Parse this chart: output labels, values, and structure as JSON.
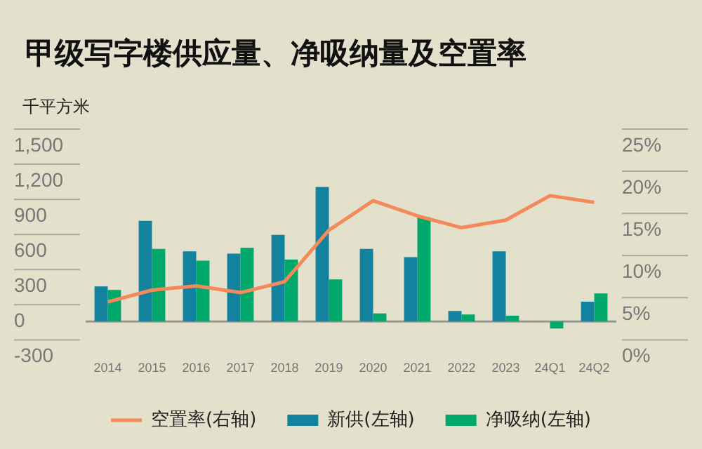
{
  "chart_data": {
    "type": "bar",
    "title": "甲级写字楼供应量、净吸纳量及空置率",
    "ylabel": "千平方米",
    "categories": [
      "2014",
      "2015",
      "2016",
      "2017",
      "2018",
      "2019",
      "2020",
      "2021",
      "2022",
      "2023",
      "24Q1",
      "24Q2"
    ],
    "series": [
      {
        "name": "新供(左轴)",
        "color": "#13829f",
        "values": [
          300,
          860,
          600,
          580,
          740,
          1150,
          620,
          550,
          90,
          600,
          null,
          170
        ]
      },
      {
        "name": "净吸纳(左轴)",
        "color": "#00a86b",
        "values": [
          270,
          620,
          520,
          630,
          530,
          360,
          70,
          890,
          60,
          50,
          -60,
          240
        ]
      },
      {
        "name": "空置率(右轴)",
        "type": "line",
        "axis": "y2",
        "color": "#f5895a",
        "values": [
          6.5,
          7.9,
          8.4,
          7.6,
          8.9,
          15.0,
          18.5,
          16.7,
          15.3,
          16.2,
          19.1,
          18.3
        ]
      }
    ],
    "ylim": [
      -300,
      1500
    ],
    "yticks": [
      -300,
      0,
      300,
      600,
      900,
      {
        "value": 1200,
        "label": "1,200"
      },
      {
        "value": 1500,
        "label": "1,500"
      }
    ],
    "y2lim": [
      0,
      25
    ],
    "y2ticks": [
      {
        "value": 0,
        "label": "0%"
      },
      {
        "value": 5,
        "label": "5%"
      },
      {
        "value": 10,
        "label": "10%"
      },
      {
        "value": 15,
        "label": "15%"
      },
      {
        "value": 20,
        "label": "20%"
      },
      {
        "value": 25,
        "label": "25%"
      }
    ],
    "grid": "y",
    "legend": "bottom",
    "marker": "none"
  }
}
